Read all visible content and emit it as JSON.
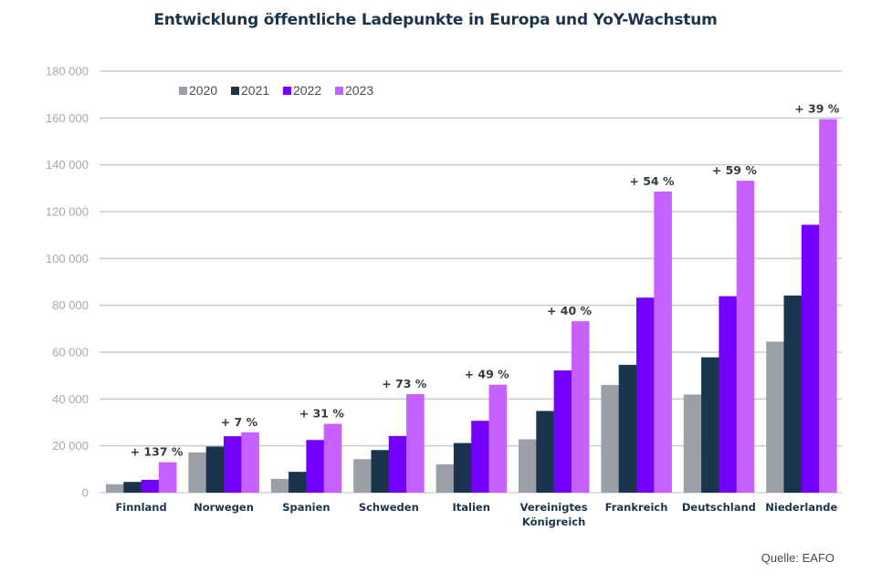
{
  "chart_data": {
    "type": "bar",
    "title": "Entwicklung öffentliche Ladepunkte in Europa und YoY-Wachstum",
    "xlabel": "",
    "ylabel": "",
    "ylim": [
      0,
      180000
    ],
    "yticks": [
      0,
      20000,
      40000,
      60000,
      80000,
      100000,
      120000,
      140000,
      160000,
      180000
    ],
    "ytick_labels": [
      "0",
      "20 000",
      "40 000",
      "60 000",
      "80 000",
      "100 000",
      "120 000",
      "140 000",
      "160 000",
      "180 000"
    ],
    "grid": true,
    "legend_position": "top-left",
    "categories": [
      [
        "Finnland"
      ],
      [
        "Norwegen"
      ],
      [
        "Spanien"
      ],
      [
        "Schweden"
      ],
      [
        "Italien"
      ],
      [
        "Vereinigtes",
        "Königreich"
      ],
      [
        "Frankreich"
      ],
      [
        "Deutschland"
      ],
      [
        "Niederlande"
      ]
    ],
    "series": [
      {
        "name": "2020",
        "color": "#9a9fa8",
        "values": [
          3600,
          17200,
          5900,
          14300,
          12100,
          22800,
          46000,
          41900,
          64500
        ]
      },
      {
        "name": "2021",
        "color": "#1b344d",
        "values": [
          4600,
          19700,
          8900,
          18200,
          21200,
          34900,
          54600,
          57800,
          84200
        ]
      },
      {
        "name": "2022",
        "color": "#7300ff",
        "values": [
          5500,
          24100,
          22500,
          24200,
          30700,
          52200,
          83300,
          83900,
          114400
        ]
      },
      {
        "name": "2023",
        "color": "#c660ff",
        "values": [
          13000,
          25800,
          29400,
          42100,
          46100,
          73200,
          128600,
          133200,
          159500
        ]
      }
    ],
    "annotations": [
      "+ 137 %",
      "+ 7 %",
      "+ 31 %",
      "+ 73 %",
      "+ 49 %",
      "+ 40 %",
      "+ 54 %",
      "+ 59 %",
      "+ 39 %"
    ],
    "source": "Quelle: EAFO"
  }
}
